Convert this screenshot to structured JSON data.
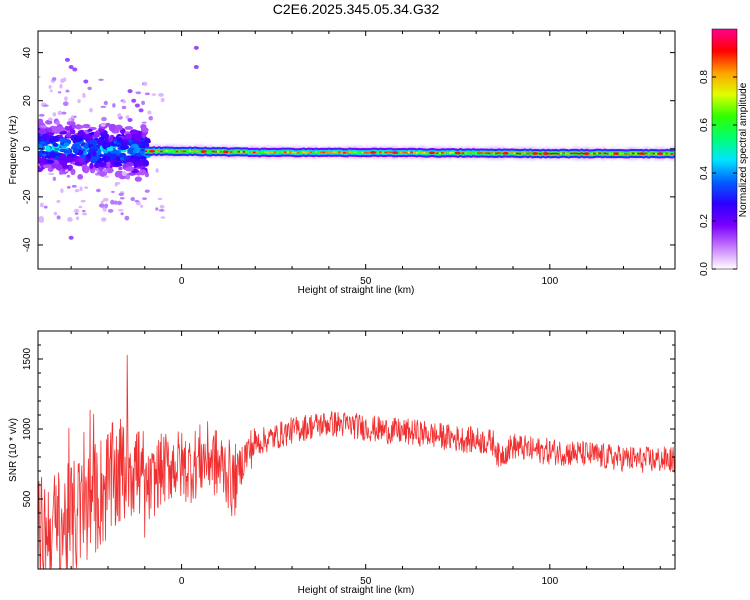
{
  "title": "C2E6.2025.345.05.34.G32",
  "chart_data": [
    {
      "type": "heatmap",
      "xlabel": "Height of straight line (km)",
      "ylabel": "Frequency (Hz)",
      "xlim": [
        -39,
        134
      ],
      "ylim": [
        -50,
        49
      ],
      "xticks": [
        0,
        50,
        100
      ],
      "yticks": [
        -40,
        -20,
        0,
        20,
        40
      ],
      "colorbar": {
        "label": "Normalized spectral amplitude",
        "range": [
          0,
          1
        ],
        "ticks": [
          "0.0",
          "0.2",
          "0.4",
          "0.6",
          "0.8"
        ],
        "tick_values": [
          0.0,
          0.2,
          0.4,
          0.6,
          0.8
        ],
        "colormap": [
          "#ffffff",
          "#c87cff",
          "#7a00ff",
          "#2a00ff",
          "#0060ff",
          "#00e5ff",
          "#00ff70",
          "#30ff00",
          "#e0ff00",
          "#ffa000",
          "#ff0000",
          "#ff0090"
        ]
      },
      "ridge": [
        {
          "x": -39,
          "y": 0.5
        },
        {
          "x": -25,
          "y": 0
        },
        {
          "x": -10,
          "y": -1
        },
        {
          "x": 0,
          "y": -1
        },
        {
          "x": 20,
          "y": -1.5
        },
        {
          "x": 50,
          "y": -1.5
        },
        {
          "x": 80,
          "y": -1.8
        },
        {
          "x": 100,
          "y": -2
        },
        {
          "x": 134,
          "y": -2
        }
      ],
      "scatter_points": [
        {
          "x": -31,
          "y": 37
        },
        {
          "x": -30,
          "y": 34
        },
        {
          "x": -29,
          "y": 33
        },
        {
          "x": -26,
          "y": 28
        },
        {
          "x": -14,
          "y": 24
        },
        {
          "x": -13,
          "y": 20
        },
        {
          "x": -12,
          "y": 18
        },
        {
          "x": -11,
          "y": 16
        },
        {
          "x": -14,
          "y": 12
        },
        {
          "x": -20,
          "y": 10
        },
        {
          "x": 4,
          "y": 34
        },
        {
          "x": 4,
          "y": 42
        },
        {
          "x": -30,
          "y": -37
        }
      ]
    },
    {
      "type": "line",
      "xlabel": "Height of straight line (km)",
      "ylabel": "SNR (10 * v/v)",
      "xlim": [
        -39,
        134
      ],
      "ylim": [
        0,
        1700
      ],
      "xticks": [
        0,
        50,
        100
      ],
      "yticks": [
        500,
        1000,
        1500
      ],
      "color": "#f03030",
      "series": [
        {
          "x": [
            -39,
            -33,
            -28,
            -25,
            -22,
            -19,
            -16,
            -14,
            -13,
            -11,
            -9,
            -6,
            -2,
            2,
            5,
            8,
            10,
            12,
            14,
            17,
            20,
            25,
            30,
            35,
            40,
            45,
            50,
            55,
            60,
            65,
            70,
            75,
            80,
            85,
            86,
            90,
            95,
            100,
            105,
            110,
            115,
            120,
            125,
            130,
            134
          ],
          "values": [
            250,
            300,
            380,
            450,
            550,
            620,
            700,
            780,
            750,
            650,
            560,
            700,
            750,
            720,
            780,
            800,
            730,
            720,
            600,
            800,
            900,
            940,
            990,
            1020,
            1040,
            1030,
            1010,
            990,
            980,
            970,
            950,
            930,
            920,
            900,
            800,
            880,
            850,
            840,
            830,
            820,
            800,
            790,
            780,
            780,
            780
          ]
        }
      ]
    }
  ]
}
